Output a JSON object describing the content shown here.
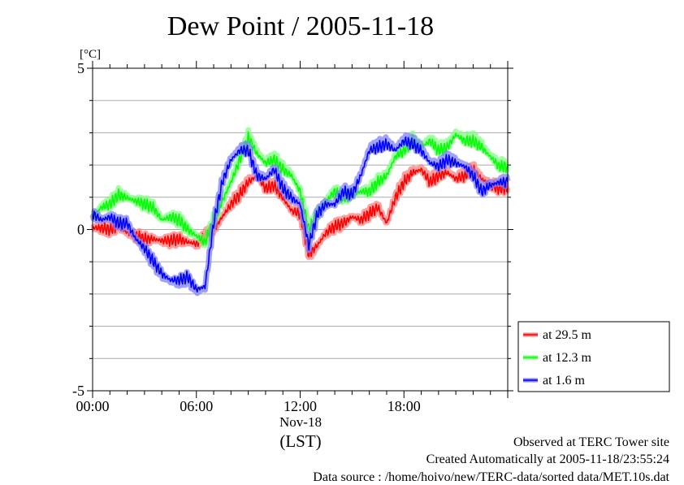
{
  "chart_data": {
    "type": "line",
    "title": "Dew Point / 2005-11-18",
    "ylabel": "[°C]",
    "ylim": [
      -5,
      5
    ],
    "yticks": [
      5,
      0,
      -5
    ],
    "ygrid_step": 1,
    "xlim": [
      "00:00",
      "24:00"
    ],
    "xticks": [
      "00:00",
      "06:00",
      "12:00",
      "18:00"
    ],
    "xlabel_date": "Nov-18",
    "xlabel_unit": "(LST)",
    "grid": true,
    "legend_position": "bottom-right",
    "series": [
      {
        "name": "at 29.5 m",
        "color": "#ff0000",
        "band_color": "#ff8080",
        "points": [
          [
            "00:00",
            0.05
          ],
          [
            "00:30",
            0.05
          ],
          [
            "01:00",
            0.0
          ],
          [
            "01:30",
            0.1
          ],
          [
            "02:00",
            -0.1
          ],
          [
            "02:30",
            -0.2
          ],
          [
            "03:00",
            -0.3
          ],
          [
            "03:30",
            -0.3
          ],
          [
            "04:00",
            -0.35
          ],
          [
            "04:30",
            -0.35
          ],
          [
            "05:00",
            -0.3
          ],
          [
            "05:30",
            -0.4
          ],
          [
            "06:00",
            -0.45
          ],
          [
            "06:30",
            -0.2
          ],
          [
            "07:00",
            0.0
          ],
          [
            "07:30",
            0.4
          ],
          [
            "08:00",
            0.8
          ],
          [
            "08:30",
            1.1
          ],
          [
            "09:00",
            1.5
          ],
          [
            "09:30",
            1.7
          ],
          [
            "10:00",
            1.3
          ],
          [
            "10:30",
            1.4
          ],
          [
            "11:00",
            1.0
          ],
          [
            "11:30",
            0.6
          ],
          [
            "12:00",
            0.5
          ],
          [
            "12:30",
            -0.8
          ],
          [
            "13:00",
            -0.5
          ],
          [
            "13:30",
            -0.1
          ],
          [
            "14:00",
            0.1
          ],
          [
            "14:30",
            0.2
          ],
          [
            "15:00",
            0.4
          ],
          [
            "15:30",
            0.3
          ],
          [
            "16:00",
            0.5
          ],
          [
            "16:30",
            0.7
          ],
          [
            "17:00",
            0.2
          ],
          [
            "17:30",
            1.0
          ],
          [
            "18:00",
            1.5
          ],
          [
            "18:30",
            1.8
          ],
          [
            "19:00",
            1.9
          ],
          [
            "19:30",
            1.5
          ],
          [
            "20:00",
            1.7
          ],
          [
            "20:30",
            1.8
          ],
          [
            "21:00",
            1.6
          ],
          [
            "21:30",
            1.7
          ],
          [
            "22:00",
            1.9
          ],
          [
            "22:30",
            1.6
          ],
          [
            "23:00",
            1.4
          ],
          [
            "23:30",
            1.3
          ]
        ]
      },
      {
        "name": "at 12.3 m",
        "color": "#00ff00",
        "band_color": "#80ff80",
        "points": [
          [
            "00:00",
            0.4
          ],
          [
            "00:30",
            0.7
          ],
          [
            "01:00",
            0.8
          ],
          [
            "01:30",
            1.1
          ],
          [
            "02:00",
            1.0
          ],
          [
            "02:30",
            0.9
          ],
          [
            "03:00",
            0.8
          ],
          [
            "03:30",
            0.7
          ],
          [
            "04:00",
            0.3
          ],
          [
            "04:30",
            0.4
          ],
          [
            "05:00",
            0.3
          ],
          [
            "05:30",
            0.0
          ],
          [
            "06:00",
            -0.2
          ],
          [
            "06:30",
            -0.4
          ],
          [
            "07:00",
            0.3
          ],
          [
            "07:30",
            0.9
          ],
          [
            "08:00",
            1.5
          ],
          [
            "08:30",
            2.2
          ],
          [
            "09:00",
            2.9
          ],
          [
            "09:30",
            2.4
          ],
          [
            "10:00",
            2.1
          ],
          [
            "10:30",
            2.2
          ],
          [
            "11:00",
            1.9
          ],
          [
            "11:30",
            1.7
          ],
          [
            "12:00",
            1.2
          ],
          [
            "12:30",
            0.0
          ],
          [
            "13:00",
            0.5
          ],
          [
            "13:30",
            0.9
          ],
          [
            "14:00",
            1.2
          ],
          [
            "14:30",
            1.0
          ],
          [
            "15:00",
            1.1
          ],
          [
            "15:30",
            1.2
          ],
          [
            "16:00",
            1.2
          ],
          [
            "16:30",
            1.5
          ],
          [
            "17:00",
            1.7
          ],
          [
            "17:30",
            2.3
          ],
          [
            "18:00",
            2.5
          ],
          [
            "18:30",
            2.8
          ],
          [
            "19:00",
            2.6
          ],
          [
            "19:30",
            2.8
          ],
          [
            "20:00",
            2.5
          ],
          [
            "20:30",
            2.6
          ],
          [
            "21:00",
            3.0
          ],
          [
            "21:30",
            2.8
          ],
          [
            "22:00",
            2.8
          ],
          [
            "22:30",
            2.6
          ],
          [
            "23:00",
            2.3
          ],
          [
            "23:30",
            2.0
          ]
        ]
      },
      {
        "name": "at 1.6 m",
        "color": "#0000ff",
        "band_color": "#8080ff",
        "points": [
          [
            "00:00",
            0.5
          ],
          [
            "00:30",
            0.3
          ],
          [
            "01:00",
            0.4
          ],
          [
            "01:30",
            0.2
          ],
          [
            "02:00",
            0.2
          ],
          [
            "02:30",
            -0.3
          ],
          [
            "03:00",
            -0.6
          ],
          [
            "03:30",
            -1.0
          ],
          [
            "04:00",
            -1.4
          ],
          [
            "04:30",
            -1.6
          ],
          [
            "05:00",
            -1.6
          ],
          [
            "05:30",
            -1.5
          ],
          [
            "06:00",
            -1.9
          ],
          [
            "06:30",
            -1.8
          ],
          [
            "07:00",
            0.2
          ],
          [
            "07:30",
            1.5
          ],
          [
            "08:00",
            2.2
          ],
          [
            "08:30",
            2.5
          ],
          [
            "09:00",
            2.5
          ],
          [
            "09:30",
            1.7
          ],
          [
            "10:00",
            1.6
          ],
          [
            "10:30",
            1.9
          ],
          [
            "11:00",
            1.3
          ],
          [
            "11:30",
            1.0
          ],
          [
            "12:00",
            0.8
          ],
          [
            "12:30",
            -0.5
          ],
          [
            "13:00",
            0.5
          ],
          [
            "13:30",
            0.8
          ],
          [
            "14:00",
            0.8
          ],
          [
            "14:30",
            1.2
          ],
          [
            "15:00",
            1.1
          ],
          [
            "15:30",
            1.7
          ],
          [
            "16:00",
            2.5
          ],
          [
            "16:30",
            2.6
          ],
          [
            "17:00",
            2.7
          ],
          [
            "17:30",
            2.5
          ],
          [
            "18:00",
            2.8
          ],
          [
            "18:30",
            2.7
          ],
          [
            "19:00",
            2.5
          ],
          [
            "19:30",
            2.1
          ],
          [
            "20:00",
            2.0
          ],
          [
            "20:30",
            2.2
          ],
          [
            "21:00",
            2.1
          ],
          [
            "21:30",
            2.0
          ],
          [
            "22:00",
            1.7
          ],
          [
            "22:30",
            1.2
          ],
          [
            "23:00",
            1.4
          ],
          [
            "23:30",
            1.5
          ]
        ]
      }
    ]
  },
  "footer": {
    "site": "Observed at TERC Tower site",
    "created": "Created Automatically at 2005-11-18/23:55:24",
    "source": "Data source : /home/hoivo/new/TERC-data/sorted  data/MET.10s.dat"
  }
}
